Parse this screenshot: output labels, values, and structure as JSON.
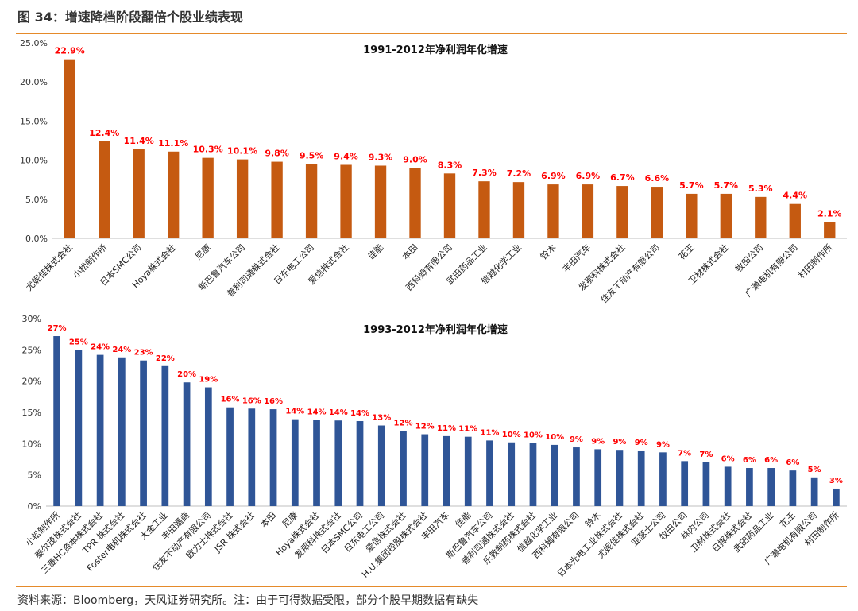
{
  "figure": {
    "title": "图 34：增速降档阶段翻倍个股业绩表现",
    "source": "资料来源：Bloomberg，天风证券研究所。注：由于可得数据受限，部分个股早期数据有缺失"
  },
  "colors": {
    "top_bar": "#c55a11",
    "bottom_bar": "#2f5597",
    "label": "#ff0000",
    "accent": "#e58a2a"
  },
  "chart_data": [
    {
      "type": "bar",
      "title": "1991-2012年净利润年化增速",
      "ylim": [
        0,
        25
      ],
      "yticks": [
        0,
        5,
        10,
        15,
        20,
        25
      ],
      "ytick_labels": [
        "0.0%",
        "5.0%",
        "10.0%",
        "15.0%",
        "20.0%",
        "25.0%"
      ],
      "grid": false,
      "categories": [
        "尤妮佳株式会社",
        "小松制作所",
        "日本SMC公司",
        "Hoya株式会社",
        "尼康",
        "斯巴鲁汽车公司",
        "普利司通株式会社",
        "日东电工公司",
        "爱信株式会社",
        "佳能",
        "本田",
        "西科姆有限公司",
        "武田药品工业",
        "信越化学工业",
        "铃木",
        "丰田汽车",
        "发那科株式会社",
        "住友不动产有限公司",
        "花王",
        "卫材株式会社",
        "牧田公司",
        "广濑电机有限公司",
        "村田制作所"
      ],
      "values": [
        22.9,
        12.4,
        11.4,
        11.1,
        10.3,
        10.1,
        9.8,
        9.5,
        9.4,
        9.3,
        9.0,
        8.3,
        7.3,
        7.2,
        6.9,
        6.9,
        6.7,
        6.6,
        5.7,
        5.7,
        5.3,
        4.4,
        2.1
      ],
      "data_labels": [
        "22.9%",
        "12.4%",
        "11.4%",
        "11.1%",
        "10.3%",
        "10.1%",
        "9.8%",
        "9.5%",
        "9.4%",
        "9.3%",
        "9.0%",
        "8.3%",
        "7.3%",
        "7.2%",
        "6.9%",
        "6.9%",
        "6.7%",
        "6.6%",
        "5.7%",
        "5.7%",
        "5.3%",
        "4.4%",
        "2.1%"
      ]
    },
    {
      "type": "bar",
      "title": "1993-2012年净利润年化增速",
      "ylim": [
        0,
        30
      ],
      "yticks": [
        0,
        5,
        10,
        15,
        20,
        25,
        30
      ],
      "ytick_labels": [
        "0%",
        "5%",
        "10%",
        "15%",
        "20%",
        "25%",
        "30%"
      ],
      "grid": false,
      "categories": [
        "小松制作所",
        "泰尔茂株式会社",
        "三菱HC资本株式会社",
        "TPR 株式会社",
        "Foster电机株式会社",
        "大金工业",
        "丰田通商",
        "住友不动产有限公司",
        "欧力士株式会社",
        "JSR 株式会社",
        "本田",
        "尼康",
        "Hoya株式会社",
        "发那科株式会社",
        "日本SMC公司",
        "日东电工公司",
        "爱信株式会社",
        "H.U.集团控股株式会社",
        "丰田汽车",
        "佳能",
        "斯巴鲁汽车公司",
        "普利司通株式会社",
        "乐敦制药株式会社",
        "信越化学工业",
        "西科姆有限公司",
        "铃木",
        "日本光电工业株式会社",
        "尤妮佳株式会社",
        "亚瑟士公司",
        "牧田公司",
        "林内公司",
        "卫材株式会社",
        "日挥株式会社",
        "武田药品工业",
        "花王",
        "广濑电机有限公司",
        "村田制作所"
      ],
      "values": [
        27.2,
        25.0,
        24.2,
        23.8,
        23.3,
        22.4,
        19.8,
        19.0,
        15.8,
        15.6,
        15.5,
        13.9,
        13.8,
        13.7,
        13.6,
        12.9,
        12.0,
        11.5,
        11.2,
        11.1,
        10.5,
        10.2,
        10.1,
        9.8,
        9.4,
        9.1,
        9.0,
        8.9,
        8.6,
        7.2,
        7.0,
        6.3,
        6.1,
        6.1,
        5.7,
        4.6,
        2.8
      ],
      "data_labels": [
        "27%",
        "25%",
        "24%",
        "24%",
        "23%",
        "22%",
        "20%",
        "19%",
        "16%",
        "16%",
        "16%",
        "14%",
        "14%",
        "14%",
        "14%",
        "13%",
        "12%",
        "12%",
        "11%",
        "11%",
        "11%",
        "10%",
        "10%",
        "10%",
        "9%",
        "9%",
        "9%",
        "9%",
        "9%",
        "7%",
        "7%",
        "6%",
        "6%",
        "6%",
        "6%",
        "5%",
        "3%"
      ]
    }
  ]
}
